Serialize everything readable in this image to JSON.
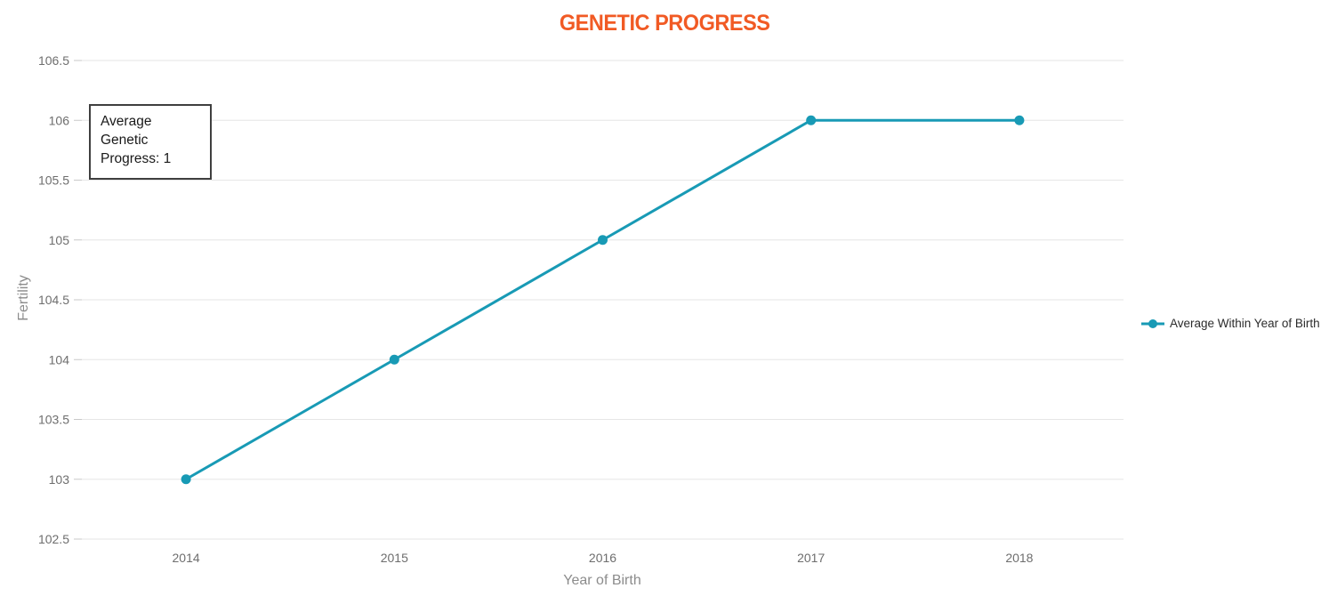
{
  "title": {
    "text": "GENETIC PROGRESS",
    "color": "#F15A24"
  },
  "annotation": {
    "text": "Average Genetic Progress: 1"
  },
  "legend": {
    "items": [
      {
        "label": "Average Within Year of Birth",
        "color": "#189AB5"
      }
    ]
  },
  "axes": {
    "xlabel": "Year of Birth",
    "ylabel": "Fertility"
  },
  "colors": {
    "accent_orange": "#F15A24",
    "series_teal": "#189AB5",
    "gridline": "#E6E6E6",
    "tick_label": "#6E6E6E",
    "axis_title": "#8C8C8C"
  },
  "chart_data": {
    "type": "line",
    "title": "GENETIC PROGRESS",
    "categories": [
      "2014",
      "2015",
      "2016",
      "2017",
      "2018"
    ],
    "series": [
      {
        "name": "Average Within Year of Birth",
        "values": [
          103,
          104,
          105,
          106,
          106
        ],
        "color": "#189AB5"
      }
    ],
    "xlabel": "Year of Birth",
    "ylabel": "Fertility",
    "ylim": [
      102.5,
      106.5
    ],
    "ytick_step": 0.5,
    "yticks": [
      102.5,
      103,
      103.5,
      104,
      104.5,
      105,
      105.5,
      106,
      106.5
    ],
    "grid": true,
    "legend_position": "right",
    "annotation": "Average Genetic Progress: 1"
  }
}
